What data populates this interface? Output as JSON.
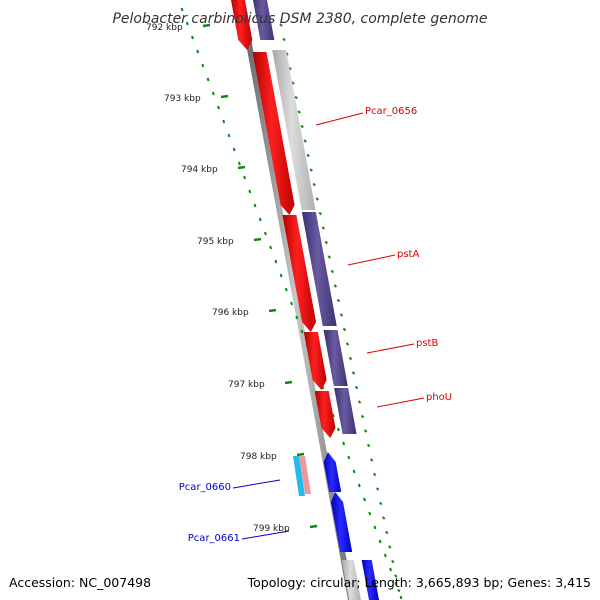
{
  "title": "Pelobacter carbinolicus DSM 2380, complete genome",
  "accession": "Accession: NC_007498",
  "topology": "Topology: circular; Length: 3,665,893 bp; Genes: 3,415",
  "ticks": [
    {
      "label": "792 kbp"
    },
    {
      "label": "793 kbp"
    },
    {
      "label": "794 kbp"
    },
    {
      "label": "795 kbp"
    },
    {
      "label": "796 kbp"
    },
    {
      "label": "797 kbp"
    },
    {
      "label": "798 kbp"
    },
    {
      "label": "799 kbp"
    }
  ],
  "gene_labels": [
    {
      "name": "Pcar_0656",
      "color": "#dd0000"
    },
    {
      "name": "pstA",
      "color": "#dd0000"
    },
    {
      "name": "pstB",
      "color": "#dd0000"
    },
    {
      "name": "phoU",
      "color": "#dd0000"
    },
    {
      "name": "Pcar_0660",
      "color": "#0000cc"
    },
    {
      "name": "Pcar_0661",
      "color": "#0000cc"
    }
  ],
  "colors": {
    "forward_gene": "#ff0000",
    "forward_cds": "#554488",
    "reverse_gene": "#0000ee",
    "rna": "#22bbee",
    "misc": "#ee9999",
    "backbone": "#888888",
    "tick": "#118811"
  }
}
